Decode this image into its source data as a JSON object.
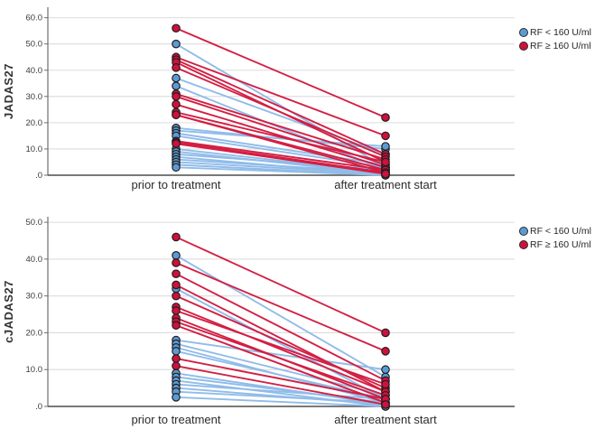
{
  "colors": {
    "background": "#ffffff",
    "grid": "#dcdcdc",
    "axis": "#6e6e6e",
    "baseline": "#4d4d4d",
    "marker_outline": "#1f1f1f",
    "blue_marker": "#5b9bd5",
    "blue_line": "#90bce9",
    "red_marker": "#d0103c",
    "red_line": "#d31f44"
  },
  "chart_data": [
    {
      "type": "line",
      "variant": "paired-slope",
      "ylabel": "JADAS27",
      "categories": [
        "prior to treatment",
        "after treatment start"
      ],
      "ylim": [
        0,
        64
      ],
      "yticks": [
        0,
        10,
        20,
        30,
        40,
        50,
        60
      ],
      "ytick_labels": [
        ".0",
        "10.0",
        "20.0",
        "30.0",
        "40.0",
        "50.0",
        "60.0"
      ],
      "grid": "horizontal",
      "legend_position": "top-right",
      "series": [
        {
          "name": "RF < 160 U/ml",
          "marker_color": "#5b9bd5",
          "line_color": "#90bce9",
          "pairs": [
            [
              50,
              3
            ],
            [
              37,
              8
            ],
            [
              34,
              2
            ],
            [
              18,
              10
            ],
            [
              17,
              11
            ],
            [
              16,
              4
            ],
            [
              15,
              3
            ],
            [
              10,
              1
            ],
            [
              9,
              0.5
            ],
            [
              8,
              2
            ],
            [
              7,
              0
            ],
            [
              6,
              1
            ],
            [
              5,
              0.5
            ],
            [
              4,
              0
            ],
            [
              3,
              0
            ]
          ]
        },
        {
          "name": "RF ≥ 160 U/ml",
          "marker_color": "#d0103c",
          "line_color": "#d31f44",
          "pairs": [
            [
              56,
              22
            ],
            [
              45,
              15
            ],
            [
              44,
              8
            ],
            [
              43,
              5
            ],
            [
              41,
              7
            ],
            [
              31,
              6
            ],
            [
              30,
              4
            ],
            [
              27,
              3
            ],
            [
              24,
              5
            ],
            [
              23,
              2
            ],
            [
              23,
              1
            ],
            [
              13,
              2
            ],
            [
              12.5,
              1
            ],
            [
              12,
              0.5
            ]
          ]
        }
      ]
    },
    {
      "type": "line",
      "variant": "paired-slope",
      "ylabel": "cJADAS27",
      "categories": [
        "prior to treatment",
        "after treatment start"
      ],
      "ylim": [
        0,
        51.5
      ],
      "yticks": [
        0,
        10,
        20,
        30,
        40,
        50
      ],
      "ytick_labels": [
        ".0",
        "10.0",
        "20.0",
        "30.0",
        "40.0",
        "50.0"
      ],
      "grid": "horizontal",
      "legend_position": "top-right",
      "series": [
        {
          "name": "RF < 160 U/ml",
          "marker_color": "#5b9bd5",
          "line_color": "#90bce9",
          "pairs": [
            [
              41,
              8
            ],
            [
              32,
              2
            ],
            [
              18,
              10
            ],
            [
              17,
              3
            ],
            [
              16,
              1
            ],
            [
              15,
              2
            ],
            [
              9,
              0.5
            ],
            [
              8,
              1
            ],
            [
              7,
              0
            ],
            [
              6,
              2
            ],
            [
              5,
              0.5
            ],
            [
              4,
              1
            ],
            [
              2.5,
              0
            ]
          ]
        },
        {
          "name": "RF ≥ 160 U/ml",
          "marker_color": "#d0103c",
          "line_color": "#d31f44",
          "pairs": [
            [
              46,
              20
            ],
            [
              39,
              15
            ],
            [
              36,
              7
            ],
            [
              33,
              4
            ],
            [
              30,
              5
            ],
            [
              27,
              4
            ],
            [
              26,
              6
            ],
            [
              24,
              2
            ],
            [
              23,
              3
            ],
            [
              22,
              1
            ],
            [
              13,
              2
            ],
            [
              11,
              0.5
            ]
          ]
        }
      ]
    }
  ]
}
